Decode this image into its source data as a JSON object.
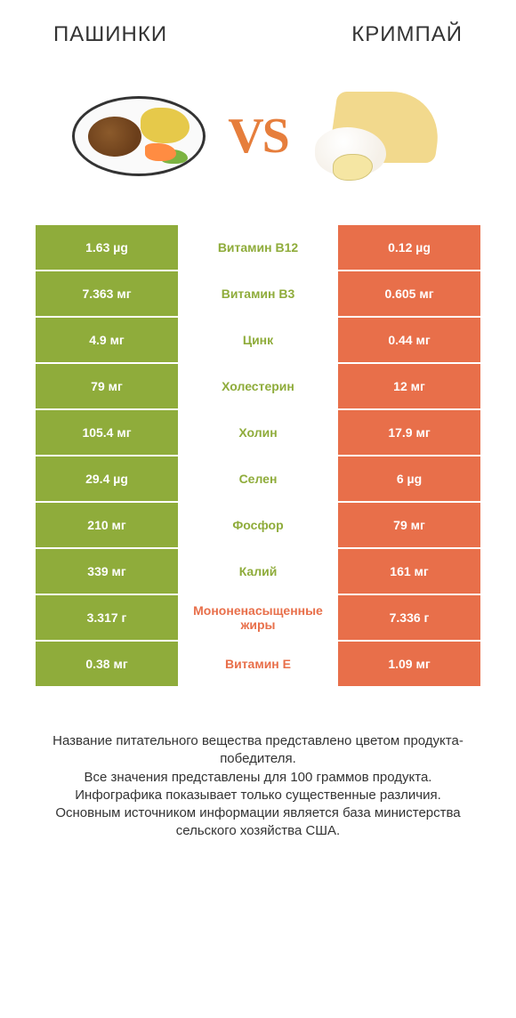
{
  "header": {
    "left_title": "ПАШИНКИ",
    "right_title": "КРИМПАЙ"
  },
  "vs": {
    "label": "VS",
    "color": "#e67e3c"
  },
  "colors": {
    "left": "#8fac3b",
    "right": "#e86f4a",
    "left_text": "#8fac3b",
    "right_text": "#e86f4a"
  },
  "rows": [
    {
      "left": "1.63 µg",
      "mid": "Витамин B12",
      "right": "0.12 µg",
      "winner": "left"
    },
    {
      "left": "7.363 мг",
      "mid": "Витамин B3",
      "right": "0.605 мг",
      "winner": "left"
    },
    {
      "left": "4.9 мг",
      "mid": "Цинк",
      "right": "0.44 мг",
      "winner": "left"
    },
    {
      "left": "79 мг",
      "mid": "Холестерин",
      "right": "12 мг",
      "winner": "left"
    },
    {
      "left": "105.4 мг",
      "mid": "Холин",
      "right": "17.9 мг",
      "winner": "left"
    },
    {
      "left": "29.4 µg",
      "mid": "Селен",
      "right": "6 µg",
      "winner": "left"
    },
    {
      "left": "210 мг",
      "mid": "Фосфор",
      "right": "79 мг",
      "winner": "left"
    },
    {
      "left": "339 мг",
      "mid": "Калий",
      "right": "161 мг",
      "winner": "left"
    },
    {
      "left": "3.317 г",
      "mid": "Мононенасыщенные жиры",
      "right": "7.336 г",
      "winner": "right"
    },
    {
      "left": "0.38 мг",
      "mid": "Витамин E",
      "right": "1.09 мг",
      "winner": "right"
    }
  ],
  "footer": {
    "line1": "Название питательного вещества представлено цветом продукта-победителя.",
    "line2": "Все значения представлены для 100 граммов продукта.",
    "line3": "Инфографика показывает только существенные различия.",
    "line4": "Основным источником информации является база министерства сельского хозяйства США."
  }
}
